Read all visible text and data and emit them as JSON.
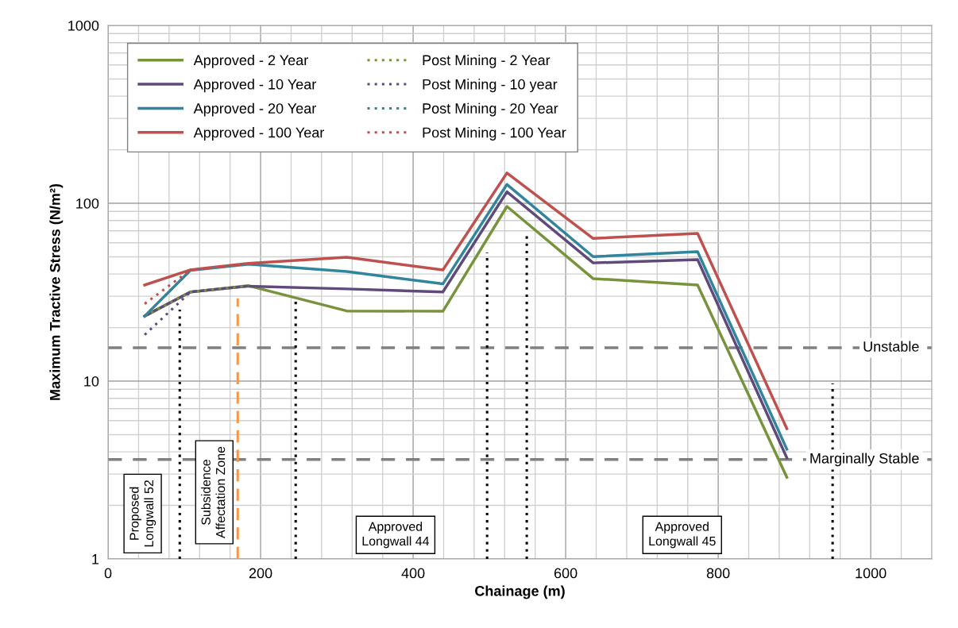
{
  "chart_data": {
    "type": "line",
    "xlabel": "Chainage (m)",
    "ylabel": "Maximum Tractive Stress (N/m²)",
    "log": "y",
    "grid": true,
    "legend": "top left",
    "xlim": [
      0,
      1080
    ],
    "ylim": [
      1,
      1000
    ],
    "xticks": [
      0,
      {
        "value": 40,
        "label": null
      },
      {
        "value": 80,
        "label": null
      },
      {
        "value": 120,
        "label": null
      },
      {
        "value": 160,
        "label": null
      },
      200,
      {
        "value": 240,
        "label": null
      },
      {
        "value": 280,
        "label": null
      },
      {
        "value": 320,
        "label": null
      },
      {
        "value": 360,
        "label": null
      },
      400,
      {
        "value": 440,
        "label": null
      },
      {
        "value": 480,
        "label": null
      },
      {
        "value": 520,
        "label": null
      },
      {
        "value": 560,
        "label": null
      },
      600,
      {
        "value": 640,
        "label": null
      },
      {
        "value": 680,
        "label": null
      },
      {
        "value": 720,
        "label": null
      },
      {
        "value": 760,
        "label": null
      },
      800,
      {
        "value": 840,
        "label": null
      },
      {
        "value": 880,
        "label": null
      },
      {
        "value": 920,
        "label": null
      },
      {
        "value": 960,
        "label": null
      },
      1000,
      {
        "value": 1040,
        "label": null
      }
    ],
    "yticks": [
      1,
      {
        "value": 2,
        "label": null
      },
      {
        "value": 3,
        "label": null
      },
      {
        "value": 4,
        "label": null
      },
      {
        "value": 5,
        "label": null
      },
      {
        "value": 6,
        "label": null
      },
      {
        "value": 7,
        "label": null
      },
      {
        "value": 8,
        "label": null
      },
      {
        "value": 9,
        "label": null
      },
      10,
      {
        "value": 20,
        "label": null
      },
      {
        "value": 30,
        "label": null
      },
      {
        "value": 40,
        "label": null
      },
      {
        "value": 50,
        "label": null
      },
      {
        "value": 60,
        "label": null
      },
      {
        "value": 70,
        "label": null
      },
      {
        "value": 80,
        "label": null
      },
      {
        "value": 90,
        "label": null
      },
      100,
      {
        "value": 200,
        "label": null
      },
      {
        "value": 300,
        "label": null
      },
      {
        "value": 400,
        "label": null
      },
      {
        "value": 500,
        "label": null
      },
      {
        "value": 600,
        "label": null
      },
      {
        "value": 700,
        "label": null
      },
      {
        "value": 800,
        "label": null
      },
      {
        "value": 900,
        "label": null
      },
      1000
    ],
    "series": [
      {
        "name": "Approved - 2 Year",
        "color": "#77933c",
        "line_style": "solid",
        "x": [
          48,
          108,
          184,
          313,
          439,
          523,
          636,
          773,
          890
        ],
        "values": [
          23.2,
          31.7,
          34.4,
          24.8,
          24.7,
          96,
          37.7,
          34.7,
          2.88
        ]
      },
      {
        "name": "Approved - 10 Year",
        "color": "#604a7b",
        "line_style": "solid",
        "x": [
          48,
          108,
          184,
          313,
          439,
          523,
          636,
          773,
          890
        ],
        "values": [
          23.2,
          31.7,
          34.2,
          33.0,
          31.7,
          116,
          46.2,
          48.2,
          3.7
        ]
      },
      {
        "name": "Approved - 20 Year",
        "color": "#31859c",
        "line_style": "solid",
        "x": [
          48,
          108,
          184,
          313,
          439,
          523,
          636,
          773,
          890
        ],
        "values": [
          23.2,
          42,
          45.4,
          41.3,
          35.2,
          127.6,
          50.1,
          53.4,
          4.14
        ]
      },
      {
        "name": "Approved - 100 Year",
        "color": "#c0504d",
        "line_style": "solid",
        "x": [
          48,
          108,
          184,
          313,
          439,
          523,
          636,
          773,
          890
        ],
        "values": [
          34.7,
          42.2,
          45.9,
          49.7,
          42.2,
          148,
          63.4,
          67.7,
          5.4
        ]
      },
      {
        "name": "Post Mining - 2 Year",
        "color": "#77933c",
        "line_style": "dotted",
        "x": [
          48,
          108,
          184
        ],
        "values": [
          23.2,
          31.7,
          34.4
        ]
      },
      {
        "name": "Post Mining - 10 year",
        "color": "#604a7b",
        "line_style": "dotted",
        "x": [
          48,
          108,
          184
        ],
        "values": [
          18.2,
          31.7,
          34.2
        ]
      },
      {
        "name": "Post Mining - 20 Year",
        "color": "#31859c",
        "line_style": "dotted",
        "x": [
          48,
          108,
          184
        ],
        "values": [
          23.2,
          42,
          45.4
        ]
      },
      {
        "name": "Post Mining - 100 Year",
        "color": "#c0504d",
        "line_style": "dotted",
        "x": [
          48,
          108,
          184
        ],
        "values": [
          27.2,
          42.2,
          45.9
        ]
      },
      {
        "color": "#000000",
        "line_style": "dotted",
        "x": [
          94,
          94
        ],
        "values": [
          1,
          25.2
        ]
      },
      {
        "color": "#f79646",
        "line_style": "dashed",
        "x": [
          170,
          170
        ],
        "values": [
          1,
          29.2
        ]
      },
      {
        "color": "#000000",
        "line_style": "dotted",
        "x": [
          246,
          246
        ],
        "values": [
          1,
          28.5
        ]
      },
      {
        "color": "#000000",
        "line_style": "dotted",
        "x": [
          497,
          497
        ],
        "values": [
          1,
          52.7
        ]
      },
      {
        "color": "#000000",
        "line_style": "dotted",
        "x": [
          549,
          549
        ],
        "values": [
          1,
          68
        ]
      },
      {
        "color": "#000000",
        "line_style": "dotted",
        "x": [
          950,
          950
        ],
        "values": [
          1,
          9.7
        ]
      }
    ],
    "ref_lines": [
      {
        "axis": "y",
        "value": 15.4,
        "label": "Unstable",
        "color": "#808080",
        "line_style": "dashed"
      },
      {
        "axis": "y",
        "value": 3.62,
        "label": "Marginally Stable",
        "color": "#808080",
        "line_style": "dashed"
      }
    ],
    "annotations": [
      "Proposed\nLongwall 52",
      "Subsidence\nAffectation Zone",
      "Approved\nLongwall 44",
      "Approved\nLongwall 45"
    ]
  }
}
